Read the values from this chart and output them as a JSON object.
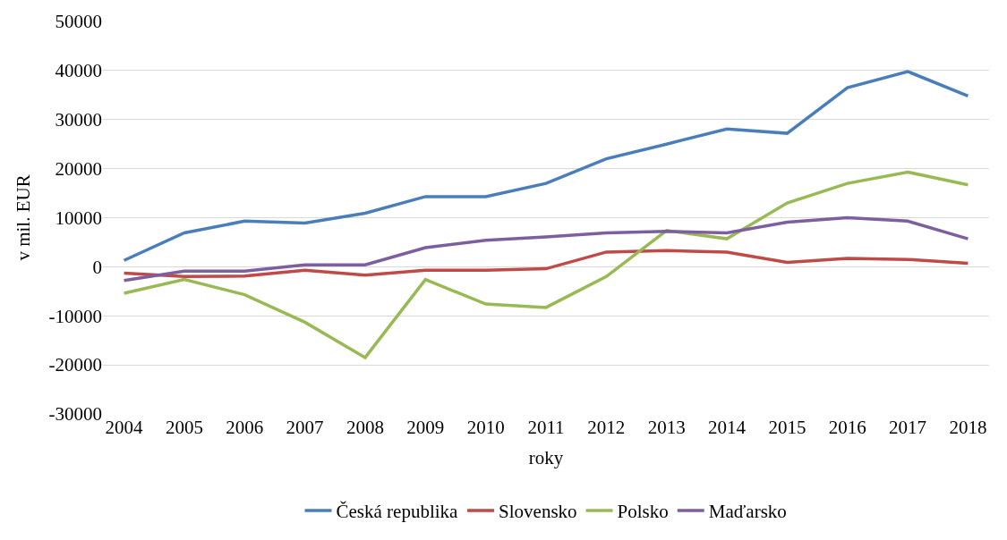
{
  "chart_data": {
    "type": "line",
    "xlabel": "roky",
    "ylabel": "v mil. EUR",
    "categories": [
      "2004",
      "2005",
      "2006",
      "2007",
      "2008",
      "2009",
      "2010",
      "2011",
      "2012",
      "2013",
      "2014",
      "2015",
      "2016",
      "2017",
      "2018"
    ],
    "series": [
      {
        "name": "Česká republika",
        "color": "#4a7ebb",
        "values": [
          1300,
          6900,
          9300,
          8900,
          10900,
          14300,
          14300,
          17000,
          22000,
          25000,
          28100,
          27200,
          36500,
          39800,
          34800
        ]
      },
      {
        "name": "Slovensko",
        "color": "#be4b48",
        "values": [
          -1300,
          -2000,
          -1900,
          -700,
          -1700,
          -700,
          -700,
          -400,
          3000,
          3300,
          3000,
          900,
          1700,
          1500,
          700
        ]
      },
      {
        "name": "Polsko",
        "color": "#98b954",
        "values": [
          -5400,
          -2600,
          -5700,
          -11300,
          -18500,
          -2600,
          -7600,
          -8300,
          -2000,
          7400,
          5700,
          13000,
          17000,
          19300,
          16700
        ]
      },
      {
        "name": "Maďarsko",
        "color": "#7d5fa0",
        "values": [
          -2800,
          -900,
          -900,
          400,
          400,
          3900,
          5400,
          6100,
          6900,
          7200,
          6900,
          9100,
          10000,
          9300,
          5700
        ]
      }
    ],
    "ylim": [
      -30000,
      50000
    ],
    "yticks": [
      -30000,
      -20000,
      -10000,
      0,
      10000,
      20000,
      30000,
      40000,
      50000
    ],
    "grid": "y",
    "legend": "bottom",
    "marker": "none",
    "line_style": "solid"
  }
}
